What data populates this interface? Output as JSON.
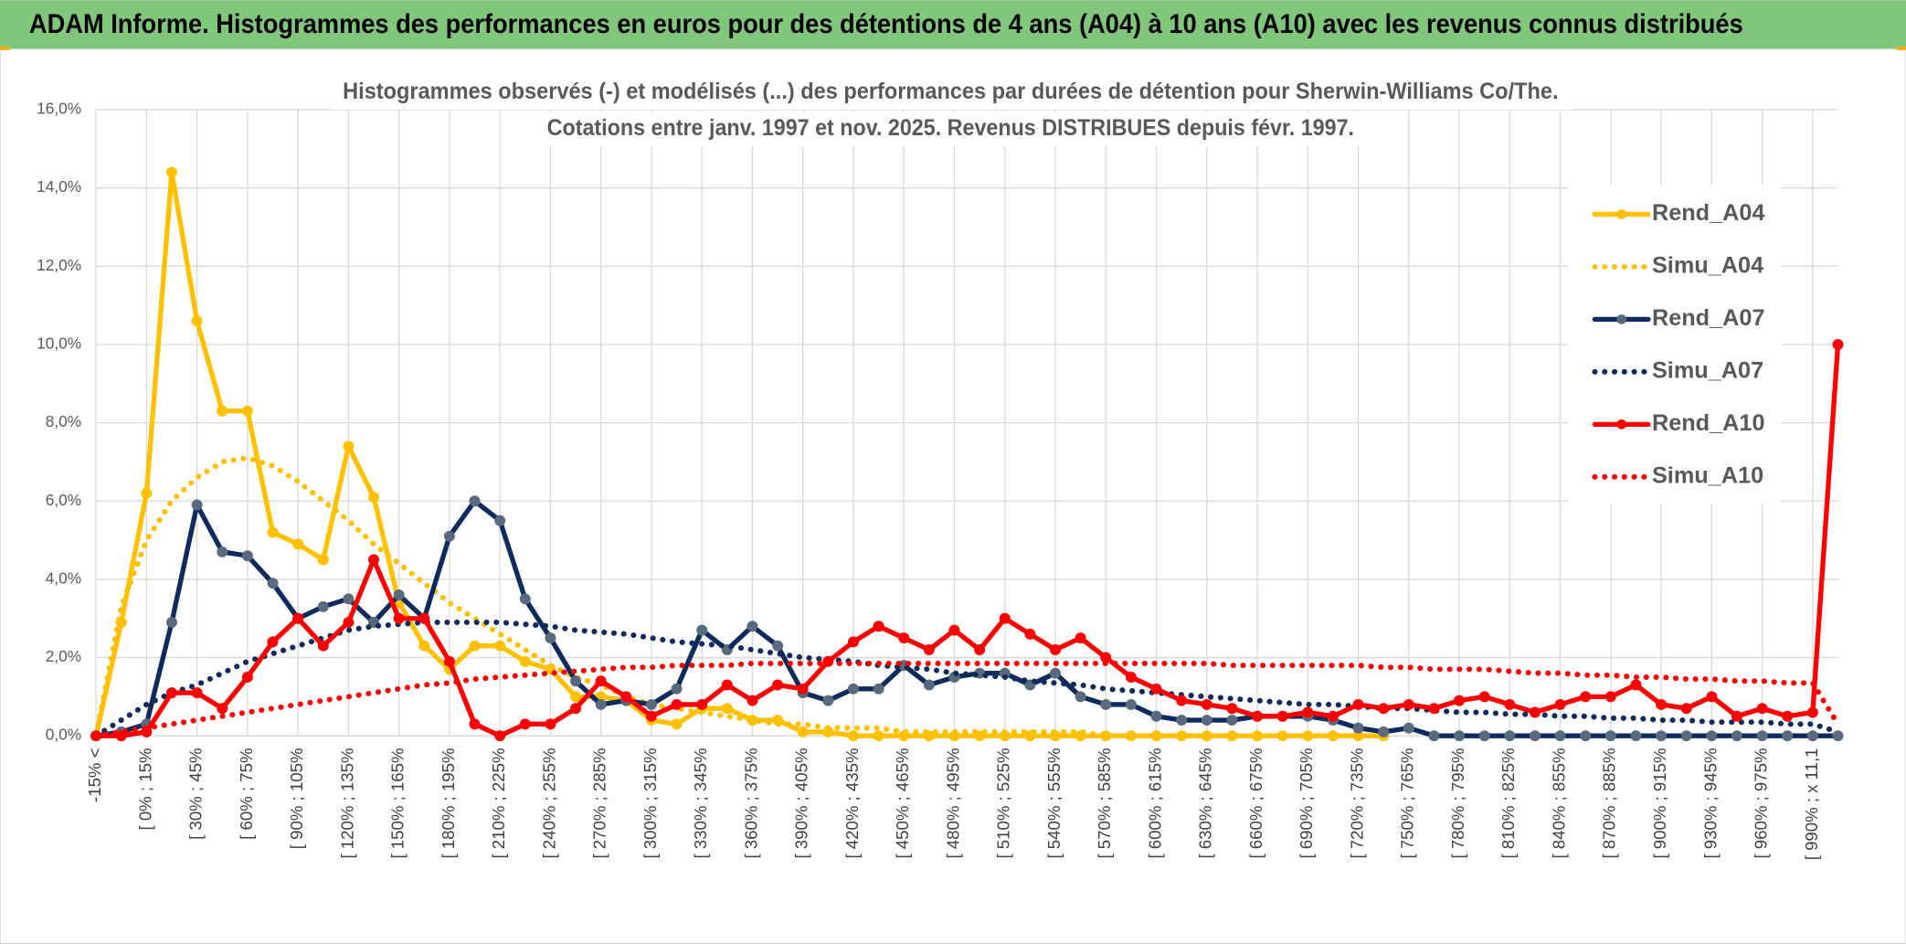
{
  "page_title": "ADAM Informe. Histogrammes des performances en euros pour des détentions de 4 ans (A04) à 10 ans (A10) avec les revenus connus distribués",
  "chart_data": {
    "type": "line",
    "title": "Histogrammes observés (-) et modélisés (...) des performances par durées de détention pour Sherwin-Williams Co/The.",
    "subtitle": "Cotations entre janv. 1997 et nov. 2025. Revenus DISTRIBUES depuis févr. 1997.",
    "categories": [
      "-15% <",
      null,
      "[ 0% ; 15%",
      null,
      "[ 30% ; 45%",
      null,
      "[ 60% ; 75%",
      null,
      "[ 90% ; 105%",
      null,
      "[ 120% ; 135%",
      null,
      "[ 150% ; 165%",
      null,
      "[ 180% ; 195%",
      null,
      "[ 210% ; 225%",
      null,
      "[ 240% ; 255%",
      null,
      "[ 270% ; 285%",
      null,
      "[ 300% ; 315%",
      null,
      "[ 330% ; 345%",
      null,
      "[ 360% ; 375%",
      null,
      "[ 390% ; 405%",
      null,
      "[ 420% ; 435%",
      null,
      "[ 450% ; 465%",
      null,
      "[ 480% ; 495%",
      null,
      "[ 510% ; 525%",
      null,
      "[ 540% ; 555%",
      null,
      "[ 570% ; 585%",
      null,
      "[ 600% ; 615%",
      null,
      "[ 630% ; 645%",
      null,
      "[ 660% ; 675%",
      null,
      "[ 690% ; 705%",
      null,
      "[ 720% ; 735%",
      null,
      "[ 750% ; 765%",
      null,
      "[ 780% ; 795%",
      null,
      "[ 810% ; 825%",
      null,
      "[ 840% ; 855%",
      null,
      "[ 870% ; 885%",
      null,
      "[ 900% ; 915%",
      null,
      "[ 930% ; 945%",
      null,
      "[ 960% ; 975%",
      null,
      "[ 990% ; x 11,1",
      null
    ],
    "series": [
      {
        "name": "Rend_A04",
        "color": "#ffc000",
        "style": "solid",
        "marker": true,
        "marker_color": "#ffc000",
        "values": [
          0,
          2.9,
          6.2,
          14.4,
          10.6,
          8.3,
          8.3,
          5.2,
          4.9,
          4.5,
          7.4,
          6.1,
          3.4,
          2.3,
          1.7,
          2.3,
          2.3,
          1.9,
          1.7,
          1.0,
          1.0,
          0.9,
          0.4,
          0.3,
          0.7,
          0.7,
          0.4,
          0.4,
          0.1,
          0.1,
          0,
          0,
          0,
          0,
          0,
          0,
          0,
          0,
          0,
          0,
          0,
          0,
          0,
          0,
          0,
          0,
          0,
          0,
          0,
          0,
          0,
          0,
          null,
          null,
          null,
          null,
          null,
          null,
          null,
          null,
          null,
          null,
          null,
          null,
          null,
          null,
          null,
          null,
          null,
          null
        ]
      },
      {
        "name": "Simu_A04",
        "color": "#ffc000",
        "style": "dotted",
        "marker": false,
        "values": [
          0,
          3.3,
          5.0,
          6.0,
          6.6,
          7.0,
          7.1,
          6.9,
          6.5,
          6.0,
          5.5,
          4.9,
          4.4,
          3.9,
          3.4,
          3.0,
          2.6,
          2.2,
          1.8,
          1.5,
          1.3,
          1.0,
          0.8,
          0.7,
          0.6,
          0.5,
          0.4,
          0.3,
          0.3,
          0.2,
          0.2,
          0.2,
          0.1,
          0.1,
          0.1,
          0.1,
          0.1,
          0.1,
          0.1,
          0.1,
          0,
          0,
          0,
          0,
          0,
          0,
          0,
          0,
          0,
          0,
          0,
          0,
          null,
          null,
          null,
          null,
          null,
          null,
          null,
          null,
          null,
          null,
          null,
          null,
          null,
          null,
          null,
          null,
          null,
          null
        ]
      },
      {
        "name": "Rend_A07",
        "color": "#0f2a5c",
        "style": "solid",
        "marker": true,
        "marker_color": "#5a6a7e",
        "values": [
          0,
          0.1,
          0.3,
          2.9,
          5.9,
          4.7,
          4.6,
          3.9,
          3.0,
          3.3,
          3.5,
          2.9,
          3.6,
          3.0,
          5.1,
          6.0,
          5.5,
          3.5,
          2.5,
          1.4,
          0.8,
          0.9,
          0.8,
          1.2,
          2.7,
          2.2,
          2.8,
          2.3,
          1.1,
          0.9,
          1.2,
          1.2,
          1.8,
          1.3,
          1.5,
          1.6,
          1.6,
          1.3,
          1.6,
          1.0,
          0.8,
          0.8,
          0.5,
          0.4,
          0.4,
          0.4,
          0.5,
          0.5,
          0.5,
          0.4,
          0.2,
          0.1,
          0.2,
          0,
          0,
          0,
          0,
          0,
          0,
          0,
          0,
          0,
          0,
          0,
          0,
          0,
          0,
          0,
          0,
          0
        ]
      },
      {
        "name": "Simu_A07",
        "color": "#0f2a5c",
        "style": "dotted",
        "marker": false,
        "values": [
          0,
          0.4,
          0.8,
          1.1,
          1.3,
          1.6,
          1.9,
          2.1,
          2.3,
          2.5,
          2.7,
          2.8,
          2.85,
          2.9,
          2.9,
          2.9,
          2.9,
          2.85,
          2.8,
          2.7,
          2.65,
          2.6,
          2.5,
          2.4,
          2.35,
          2.3,
          2.2,
          2.1,
          2.0,
          1.95,
          1.9,
          1.8,
          1.75,
          1.7,
          1.6,
          1.55,
          1.5,
          1.4,
          1.35,
          1.3,
          1.2,
          1.15,
          1.1,
          1.05,
          1.0,
          0.95,
          0.9,
          0.85,
          0.8,
          0.8,
          0.75,
          0.7,
          0.7,
          0.65,
          0.6,
          0.6,
          0.55,
          0.55,
          0.5,
          0.5,
          0.45,
          0.45,
          0.4,
          0.4,
          0.35,
          0.35,
          0.35,
          0.3,
          0.3,
          0.1
        ]
      },
      {
        "name": "Rend_A10",
        "color": "#ff0000",
        "style": "solid",
        "marker": true,
        "marker_color": "#ff0000",
        "values": [
          0,
          0,
          0.1,
          1.1,
          1.1,
          0.7,
          1.5,
          2.4,
          3.0,
          2.3,
          2.9,
          4.5,
          3.0,
          3.0,
          1.9,
          0.3,
          0,
          0.3,
          0.3,
          0.7,
          1.4,
          1.0,
          0.5,
          0.8,
          0.8,
          1.3,
          0.9,
          1.3,
          1.2,
          1.9,
          2.4,
          2.8,
          2.5,
          2.2,
          2.7,
          2.2,
          3.0,
          2.6,
          2.2,
          2.5,
          2.0,
          1.5,
          1.2,
          0.9,
          0.8,
          0.7,
          0.5,
          0.5,
          0.6,
          0.5,
          0.8,
          0.7,
          0.8,
          0.7,
          0.9,
          1.0,
          0.8,
          0.6,
          0.8,
          1.0,
          1.0,
          1.3,
          0.8,
          0.7,
          1.0,
          0.5,
          0.7,
          0.5,
          0.6,
          10.0
        ]
      },
      {
        "name": "Simu_A10",
        "color": "#ff0000",
        "style": "dotted",
        "marker": false,
        "values": [
          0,
          0.1,
          0.2,
          0.3,
          0.4,
          0.5,
          0.6,
          0.7,
          0.8,
          0.9,
          1.0,
          1.1,
          1.2,
          1.3,
          1.35,
          1.45,
          1.5,
          1.55,
          1.6,
          1.65,
          1.7,
          1.75,
          1.75,
          1.8,
          1.8,
          1.8,
          1.85,
          1.85,
          1.85,
          1.85,
          1.85,
          1.85,
          1.85,
          1.85,
          1.85,
          1.85,
          1.85,
          1.85,
          1.85,
          1.85,
          1.85,
          1.85,
          1.85,
          1.85,
          1.85,
          1.8,
          1.8,
          1.8,
          1.8,
          1.8,
          1.8,
          1.75,
          1.75,
          1.7,
          1.7,
          1.7,
          1.65,
          1.6,
          1.6,
          1.55,
          1.55,
          1.5,
          1.5,
          1.45,
          1.45,
          1.4,
          1.4,
          1.35,
          1.35,
          0.3
        ]
      }
    ],
    "ylim": [
      0,
      16
    ],
    "yticks": [
      {
        "value": 0,
        "label": "0,0%"
      },
      {
        "value": 2,
        "label": "2,0%"
      },
      {
        "value": 4,
        "label": "4,0%"
      },
      {
        "value": 6,
        "label": "6,0%"
      },
      {
        "value": 8,
        "label": "8,0%"
      },
      {
        "value": 10,
        "label": "10,0%"
      },
      {
        "value": 12,
        "label": "12,0%"
      },
      {
        "value": 14,
        "label": "14,0%"
      },
      {
        "value": 16,
        "label": "16,0%"
      }
    ],
    "grid": true,
    "legend": "right"
  }
}
